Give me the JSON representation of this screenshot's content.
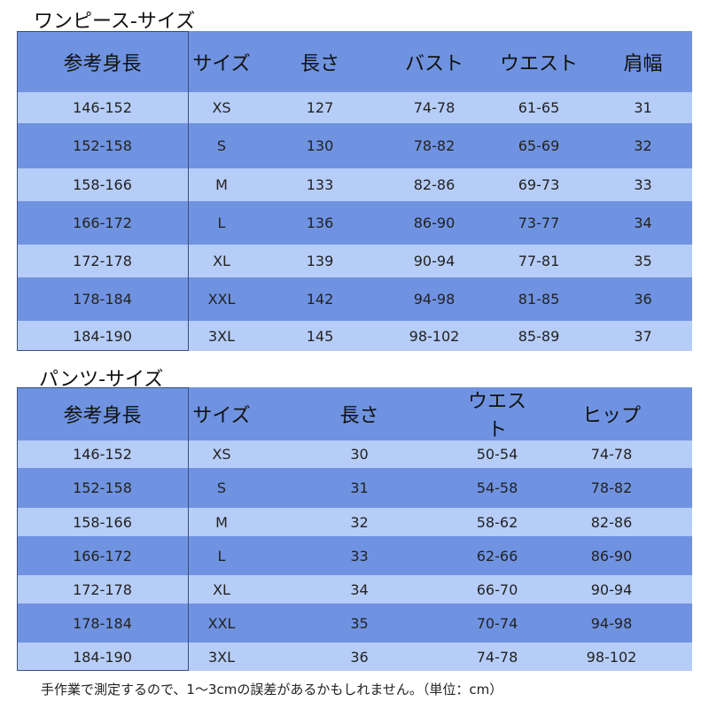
{
  "onepiece": {
    "title": "ワンピース-サイズ",
    "headers": [
      "参考身長",
      "サイズ",
      "長さ",
      "バスト",
      "ウエスト",
      "肩幅"
    ],
    "rows": [
      [
        "146-152",
        "XS",
        "127",
        "74-78",
        "61-65",
        "31"
      ],
      [
        "152-158",
        "S",
        "130",
        "78-82",
        "65-69",
        "32"
      ],
      [
        "158-166",
        "M",
        "133",
        "82-86",
        "69-73",
        "33"
      ],
      [
        "166-172",
        "L",
        "136",
        "86-90",
        "73-77",
        "34"
      ],
      [
        "172-178",
        "XL",
        "139",
        "90-94",
        "77-81",
        "35"
      ],
      [
        "178-184",
        "XXL",
        "142",
        "94-98",
        "81-85",
        "36"
      ],
      [
        "184-190",
        "3XL",
        "145",
        "98-102",
        "85-89",
        "37"
      ]
    ]
  },
  "pants": {
    "title": "パンツ-サイズ",
    "headers": [
      "参考身長",
      "サイズ",
      "長さ",
      "ウエスト",
      "ヒップ"
    ],
    "rows": [
      [
        "146-152",
        "XS",
        "30",
        "50-54",
        "74-78"
      ],
      [
        "152-158",
        "S",
        "31",
        "54-58",
        "78-82"
      ],
      [
        "158-166",
        "M",
        "32",
        "58-62",
        "82-86"
      ],
      [
        "166-172",
        "L",
        "33",
        "62-66",
        "86-90"
      ],
      [
        "172-178",
        "XL",
        "34",
        "66-70",
        "90-94"
      ],
      [
        "178-184",
        "XXL",
        "35",
        "70-74",
        "94-98"
      ],
      [
        "184-190",
        "3XL",
        "36",
        "74-78",
        "98-102"
      ]
    ]
  },
  "note": "手作業で測定するので、1〜3cmの誤差があるかもしれません。（単位：cm）",
  "colors": {
    "dark_row": "#6f93e0",
    "light_row": "#b6cdf8",
    "border": "#3a4f7f"
  }
}
